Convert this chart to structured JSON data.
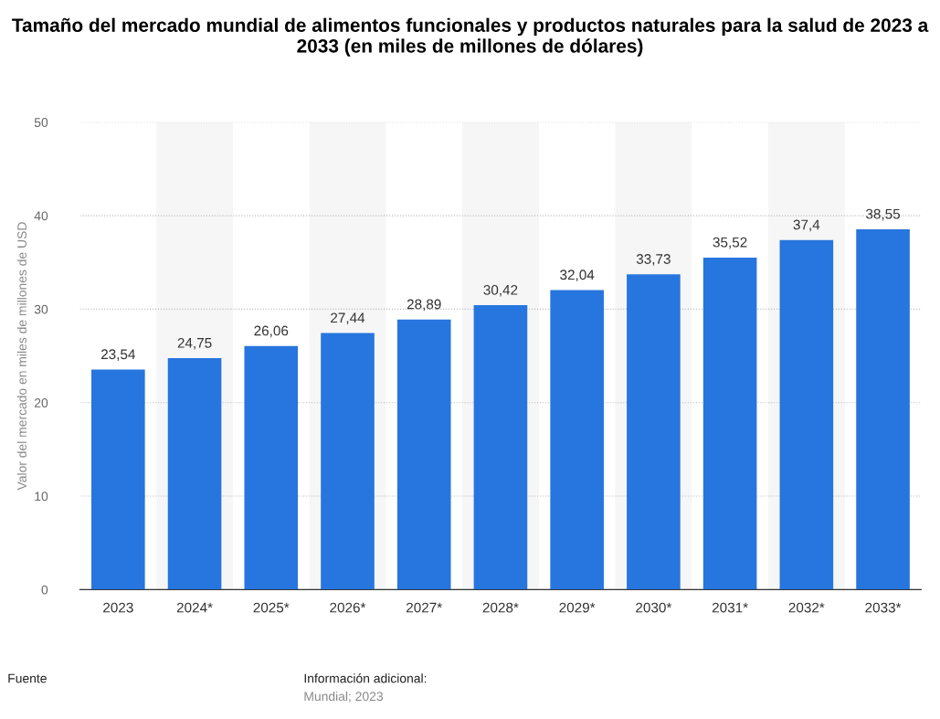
{
  "chart_data": {
    "type": "bar",
    "title": "Tamaño del mercado mundial de alimentos funcionales y productos naturales para la salud de 2023 a 2033 (en miles de millones de dólares)",
    "ylabel": "Valor del mercado en miles de millones de USD",
    "categories": [
      "2023",
      "2024*",
      "2025*",
      "2026*",
      "2027*",
      "2028*",
      "2029*",
      "2030*",
      "2031*",
      "2032*",
      "2033*"
    ],
    "values": [
      23.54,
      24.75,
      26.06,
      27.44,
      28.89,
      30.42,
      32.04,
      33.73,
      35.52,
      37.4,
      38.55
    ],
    "value_labels": [
      "23,54",
      "24,75",
      "26,06",
      "27,44",
      "28,89",
      "30,42",
      "32,04",
      "33,73",
      "35,52",
      "37,4",
      "38,55"
    ],
    "color": "#2775de",
    "ylim": [
      0,
      50
    ],
    "yticks": [
      0,
      10,
      20,
      30,
      40,
      50
    ],
    "grid": "y",
    "annotations": [
      "Fuente",
      "Información adicional:",
      "Mundial; 2023"
    ]
  }
}
